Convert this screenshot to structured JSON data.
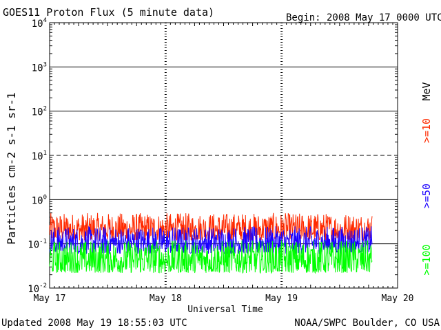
{
  "header": {
    "title": "GOES11 Proton Flux (5 minute data)",
    "begin": "Begin: 2008 May 17 0000 UTC"
  },
  "footer": {
    "updated": "Updated 2008 May 19 18:55:03 UTC",
    "credit": "NOAA/SWPC Boulder, CO USA"
  },
  "chart_data": {
    "type": "line",
    "title": "GOES11 Proton Flux (5 minute data)",
    "xlabel": "Universal Time",
    "ylabel": "Particles cm-2 s-1 sr-1",
    "yscale": "log",
    "ylim": [
      0.01,
      10000
    ],
    "xlim_days": [
      0,
      3
    ],
    "x_ticks": [
      "May 17",
      "May 18",
      "May 19",
      "May 20"
    ],
    "y_ticks": [
      "10^-2",
      "10^-1",
      "10^0",
      "10^1",
      "10^2",
      "10^3",
      "10^4"
    ],
    "grid": "horizontal at each decade (10^1 dashed)",
    "legend_units": "MeV",
    "legend_position": "right",
    "x_end_days": 2.78,
    "series": [
      {
        "name": ">=10",
        "color": "#ff2a00",
        "min": 0.12,
        "max": 0.5
      },
      {
        "name": ">=50",
        "color": "#1a00ff",
        "min": 0.06,
        "max": 0.25
      },
      {
        "name": ">=100",
        "color": "#00ff00",
        "min": 0.022,
        "max": 0.12
      }
    ]
  }
}
